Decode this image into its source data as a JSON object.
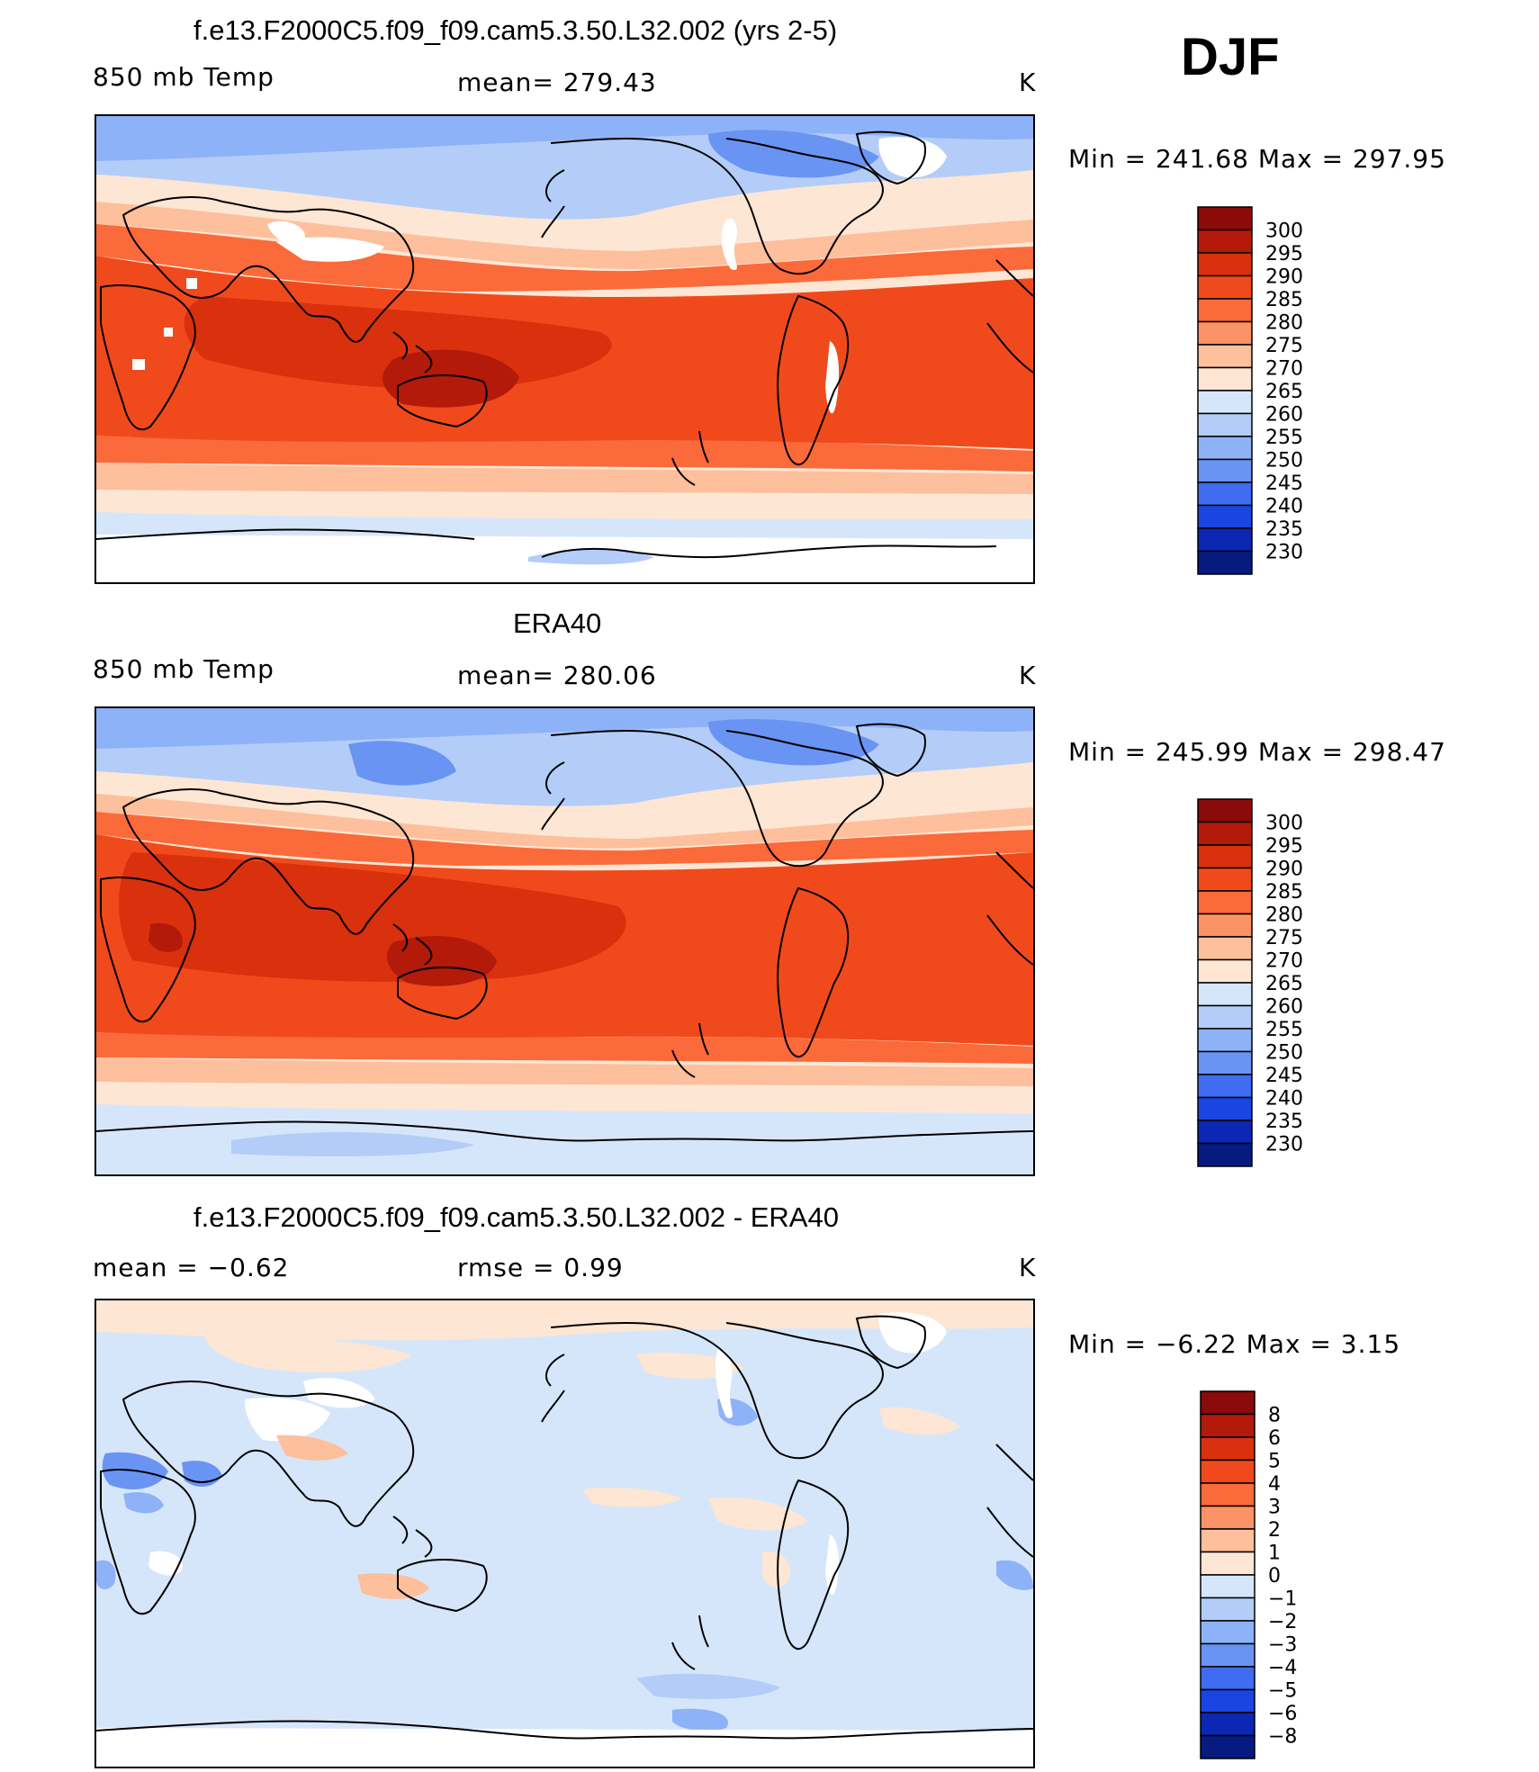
{
  "season": "DJF",
  "panels": [
    {
      "id": "model",
      "title": "f.e13.F2000C5.f09_f09.cam5.3.50.L32.002 (yrs 2-5)",
      "left_label": "850 mb Temp",
      "center_label": "mean= 279.43",
      "unit": "K",
      "minmax": "Min = 241.68 Max = 297.95"
    },
    {
      "id": "obs",
      "title": "ERA40",
      "left_label": "850 mb Temp",
      "center_label": "mean= 280.06",
      "unit": "K",
      "minmax": "Min = 245.99 Max = 298.47"
    },
    {
      "id": "diff",
      "title": "f.e13.F2000C5.f09_f09.cam5.3.50.L32.002 - ERA40",
      "left_label": "mean =   −0.62",
      "center_label": "rmse =    0.99",
      "unit": "K",
      "minmax": "Min =   −6.22 Max =    3.15"
    }
  ],
  "colorbars": {
    "temperature": {
      "levels": [
        "300",
        "295",
        "290",
        "285",
        "280",
        "275",
        "270",
        "265",
        "260",
        "255",
        "250",
        "245",
        "240",
        "235",
        "230"
      ],
      "colors": [
        "#8b0a0a",
        "#b31a0a",
        "#d9300e",
        "#f04a1c",
        "#fb6a3a",
        "#fc9366",
        "#fdbf9c",
        "#fde6d4",
        "#d6e6fa",
        "#b3cdf8",
        "#8eb2f7",
        "#6a94f3",
        "#3f6cf0",
        "#1a45e0",
        "#0b27b3",
        "#071a80"
      ]
    },
    "difference": {
      "levels": [
        "8",
        "6",
        "5",
        "4",
        "3",
        "2",
        "1",
        "0",
        "−1",
        "−2",
        "−3",
        "−4",
        "−5",
        "−6",
        "−8"
      ],
      "colors": [
        "#8b0a0a",
        "#b31a0a",
        "#d9300e",
        "#f04a1c",
        "#fb6a3a",
        "#fc9366",
        "#fdbf9c",
        "#fde6d4",
        "#d6e6fa",
        "#b3cdf8",
        "#8eb2f7",
        "#6a94f3",
        "#3f6cf0",
        "#1a45e0",
        "#0b27b3",
        "#071a80"
      ]
    }
  }
}
